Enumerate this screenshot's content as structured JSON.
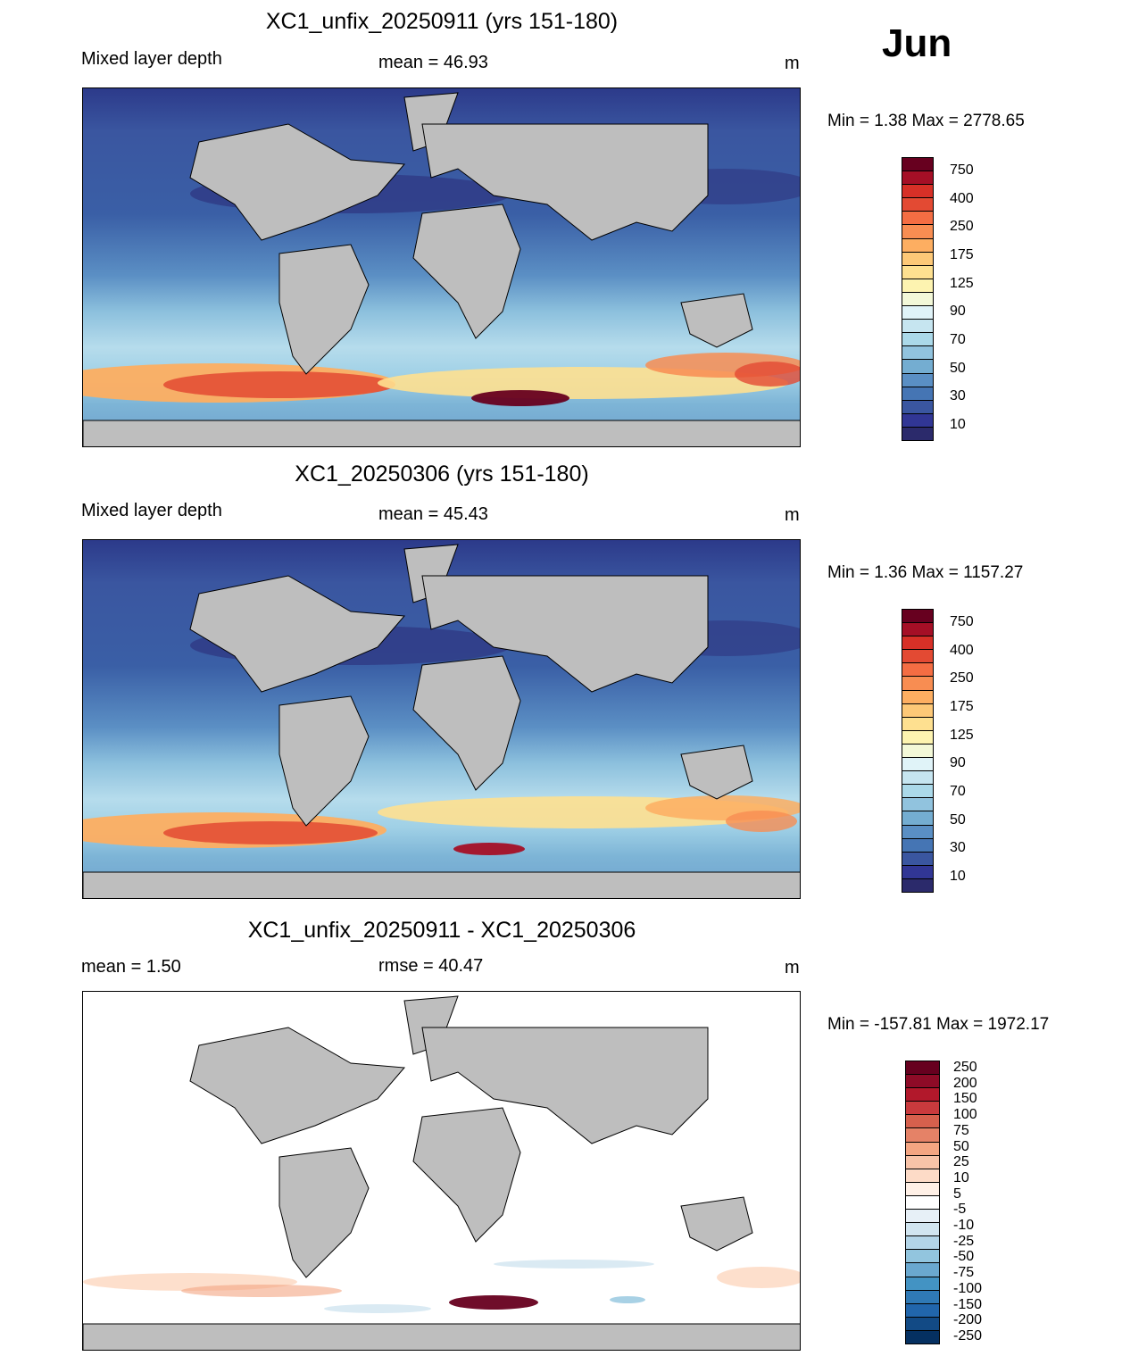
{
  "month": "Jun",
  "units": "m",
  "panels": [
    {
      "title": "XC1_unfix_20250911 (yrs 151-180)",
      "left_label": "Mixed layer depth",
      "center_label": "mean =  46.93",
      "right_label": "m",
      "minmax": "Min =    1.38 Max = 2778.65",
      "palette": "ocean-depth"
    },
    {
      "title": "XC1_20250306 (yrs 151-180)",
      "left_label": "Mixed layer depth",
      "center_label": "mean =  45.43",
      "right_label": "m",
      "minmax": "Min =    1.36 Max = 1157.27",
      "palette": "ocean-depth"
    },
    {
      "title": "XC1_unfix_20250911 - XC1_20250306",
      "left_label": "mean =   1.50",
      "center_label": "rmse =  40.47",
      "right_label": "m",
      "minmax": "Min = -157.81 Max = 1972.17",
      "palette": "difference"
    }
  ],
  "colorbar_depth": {
    "labels": [
      "750",
      "400",
      "250",
      "175",
      "125",
      "90",
      "70",
      "50",
      "30",
      "10"
    ],
    "colors": [
      "#67001f",
      "#a50f26",
      "#d73027",
      "#e34a33",
      "#f46d43",
      "#f88d52",
      "#fdae61",
      "#fdc877",
      "#fee090",
      "#fdf3b0",
      "#f3f8d8",
      "#e0f3f8",
      "#c6e5f0",
      "#abd9e9",
      "#91c3de",
      "#74add1",
      "#5a8fc4",
      "#4575b4",
      "#3a56a0",
      "#313695",
      "#2b2a6b"
    ]
  },
  "colorbar_diff": {
    "labels": [
      "250",
      "200",
      "150",
      "100",
      "75",
      "50",
      "25",
      "10",
      "5",
      "-5",
      "-10",
      "-25",
      "-50",
      "-75",
      "-100",
      "-150",
      "-200",
      "-250"
    ],
    "colors": [
      "#67001f",
      "#8e0b27",
      "#b2182b",
      "#c93a3d",
      "#d6604d",
      "#e58267",
      "#f4a582",
      "#f8c3a8",
      "#fddbc7",
      "#fff0e6",
      "#ffffff",
      "#e7f0f7",
      "#d1e5f0",
      "#b3d5e8",
      "#92c5de",
      "#6aa8cf",
      "#4393c3",
      "#2f79b5",
      "#2166ac",
      "#124a85",
      "#053061"
    ]
  }
}
